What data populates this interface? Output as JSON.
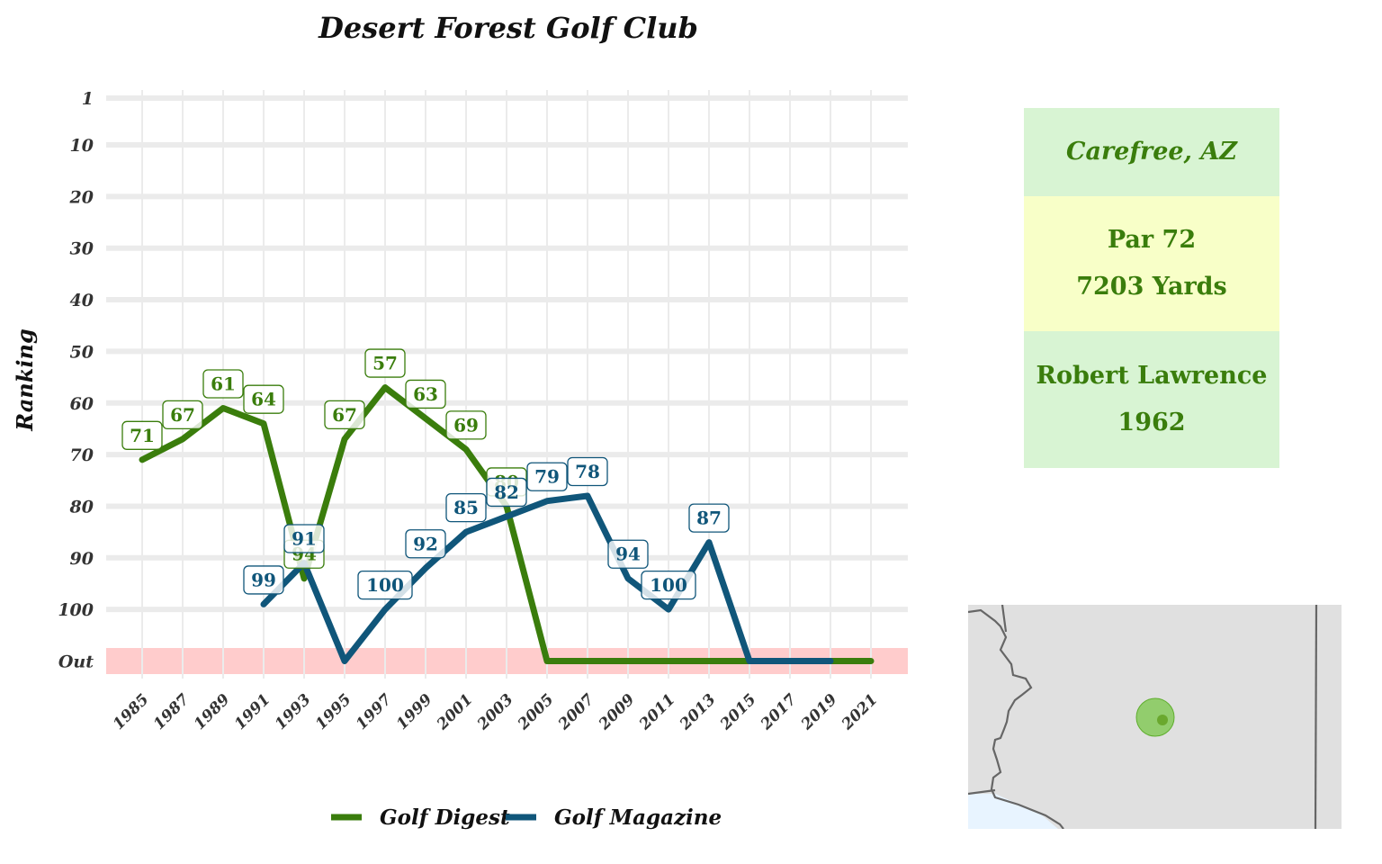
{
  "chart_data": {
    "type": "line",
    "title": "Desert Forest Golf Club",
    "xlabel": "",
    "ylabel": "Ranking",
    "x_ticks": [
      "1985",
      "1987",
      "1989",
      "1991",
      "1993",
      "1995",
      "1997",
      "1999",
      "2001",
      "2003",
      "2005",
      "2007",
      "2009",
      "2011",
      "2013",
      "2015",
      "2017",
      "2019",
      "2021"
    ],
    "x_range": [
      1985,
      2021
    ],
    "y_ticks": [
      "1",
      "10",
      "20",
      "30",
      "40",
      "50",
      "60",
      "70",
      "80",
      "90",
      "100",
      "Out"
    ],
    "y_tick_values": [
      1,
      10,
      20,
      30,
      40,
      50,
      60,
      70,
      80,
      90,
      100,
      110
    ],
    "y_reversed": true,
    "out_band_label": "Out",
    "grid": true,
    "legend_position": "bottom",
    "series": [
      {
        "name": "Golf Digest",
        "color": "#3a7d0c",
        "points": [
          {
            "x": 1985,
            "y": 71,
            "label": "71"
          },
          {
            "x": 1987,
            "y": 67,
            "label": "67"
          },
          {
            "x": 1989,
            "y": 61,
            "label": "61"
          },
          {
            "x": 1991,
            "y": 64,
            "label": "64"
          },
          {
            "x": 1993,
            "y": 94,
            "label": "94"
          },
          {
            "x": 1995,
            "y": 67,
            "label": "67"
          },
          {
            "x": 1997,
            "y": 57,
            "label": "57"
          },
          {
            "x": 1999,
            "y": 63,
            "label": "63"
          },
          {
            "x": 2001,
            "y": 69,
            "label": "69"
          },
          {
            "x": 2003,
            "y": 80,
            "label": "80"
          },
          {
            "x": 2005,
            "y": "Out"
          },
          {
            "x": 2007,
            "y": "Out"
          },
          {
            "x": 2009,
            "y": "Out"
          },
          {
            "x": 2011,
            "y": "Out"
          },
          {
            "x": 2013,
            "y": "Out"
          },
          {
            "x": 2015,
            "y": "Out"
          },
          {
            "x": 2017,
            "y": "Out"
          },
          {
            "x": 2019,
            "y": "Out"
          },
          {
            "x": 2021,
            "y": "Out"
          }
        ]
      },
      {
        "name": "Golf Magazine",
        "color": "#10567a",
        "points": [
          {
            "x": 1991,
            "y": 99,
            "label": "99"
          },
          {
            "x": 1993,
            "y": 91,
            "label": "91"
          },
          {
            "x": 1995,
            "y": "Out"
          },
          {
            "x": 1997,
            "y": 100,
            "label": "100"
          },
          {
            "x": 1999,
            "y": 92,
            "label": "92"
          },
          {
            "x": 2001,
            "y": 85,
            "label": "85"
          },
          {
            "x": 2003,
            "y": 82,
            "label": "82"
          },
          {
            "x": 2005,
            "y": 79,
            "label": "79"
          },
          {
            "x": 2007,
            "y": 78,
            "label": "78"
          },
          {
            "x": 2009,
            "y": 94,
            "label": "94"
          },
          {
            "x": 2011,
            "y": 100,
            "label": "100"
          },
          {
            "x": 2013,
            "y": 87,
            "label": "87"
          },
          {
            "x": 2015,
            "y": "Out"
          },
          {
            "x": 2017,
            "y": "Out"
          },
          {
            "x": 2019,
            "y": "Out"
          }
        ]
      }
    ]
  },
  "info": {
    "location": "Carefree, AZ",
    "par": "Par 72",
    "yards": "7203 Yards",
    "designer": "Robert Lawrence",
    "year": "1962"
  },
  "colors": {
    "out_band": "#ffcccc",
    "grid": "#ebebeb",
    "map_land": "#e0e0e0",
    "map_border": "#666666",
    "map_water": "#e8f4ff",
    "marker": "#7ec850"
  }
}
